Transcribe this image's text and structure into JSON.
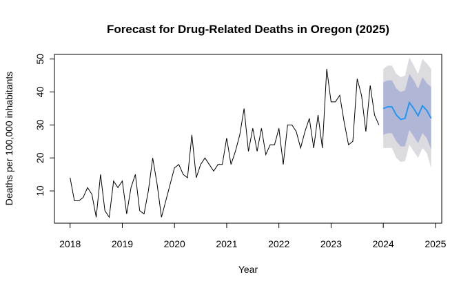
{
  "chart_data": {
    "type": "line",
    "title": "Forecast for Drug-Related Deaths in Oregon (2025)",
    "xlabel": "Year",
    "ylabel": "Deaths per 100,000 inhabitants",
    "xlim": [
      2017.7,
      2025.12
    ],
    "ylim": [
      0.2,
      51.4
    ],
    "x_ticks": [
      2018,
      2019,
      2020,
      2021,
      2022,
      2023,
      2024,
      2025
    ],
    "y_ticks": [
      10,
      20,
      30,
      40,
      50
    ],
    "grid": false,
    "legend": "none",
    "series": [
      {
        "kind": "observed",
        "color": "#000000",
        "start": 2018.0,
        "step": 0.08333,
        "values": [
          14,
          7,
          7,
          8,
          11,
          9,
          2,
          15,
          4,
          2,
          13,
          11,
          13,
          3,
          11,
          15,
          4,
          3,
          10,
          20,
          12,
          2,
          7,
          12,
          17,
          18,
          15,
          14,
          27,
          14,
          18,
          20,
          18,
          16,
          18,
          18,
          26,
          18,
          22,
          27,
          35,
          22,
          29,
          22,
          29,
          21,
          24,
          24,
          29,
          18,
          30,
          30,
          28,
          23,
          28,
          32,
          23,
          33,
          23,
          47,
          37,
          37,
          39,
          31,
          24,
          25,
          44,
          39,
          28,
          42,
          33,
          30
        ]
      },
      {
        "kind": "forecast",
        "color": "#2196f3",
        "start": 2024.0,
        "step": 0.08333,
        "values": [
          35,
          35.5,
          35.5,
          33,
          31.7,
          32,
          36.8,
          35,
          32.8,
          35.8,
          34.4,
          32
        ],
        "lo80": [
          27,
          27.5,
          27.5,
          25,
          23.5,
          23.5,
          28.5,
          26.5,
          24.5,
          27.5,
          26,
          22.5
        ],
        "hi80": [
          43,
          43.5,
          43.5,
          41,
          40,
          40.5,
          45.5,
          43.5,
          41,
          44.5,
          42.7,
          41.5
        ],
        "lo95": [
          23,
          23,
          23,
          20,
          18.8,
          19,
          24,
          22,
          20,
          23,
          21.5,
          17
        ],
        "hi95": [
          47,
          48,
          48,
          45.5,
          44.5,
          45,
          50.5,
          48,
          45.5,
          50,
          48.7,
          47
        ],
        "band80_color": "#b0b6d6",
        "band95_color": "#dcdce0"
      }
    ]
  }
}
